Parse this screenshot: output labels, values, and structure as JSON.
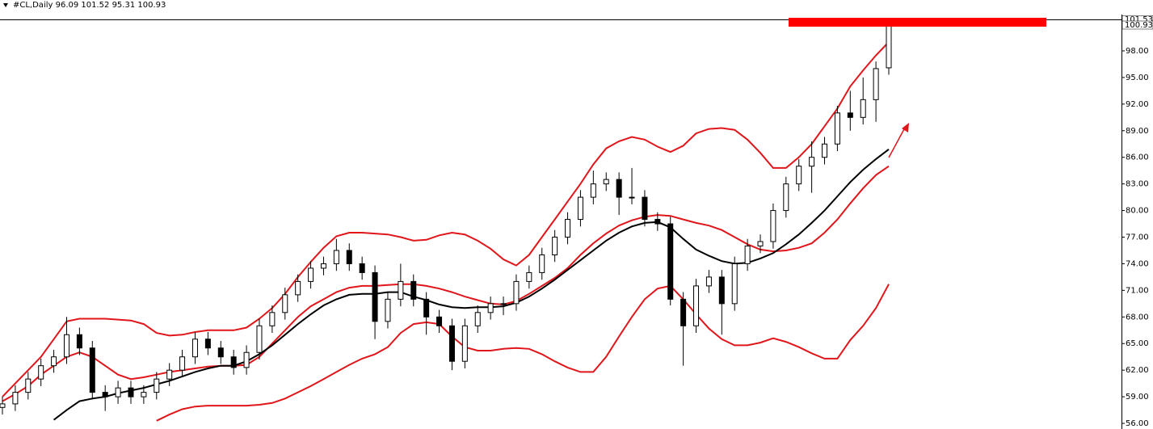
{
  "chart_data": {
    "type": "candlestick",
    "title": "#CL,Daily  96.09 101.52 95.31 100.93",
    "ylim": [
      55.64,
      101.55
    ],
    "yticks": [
      {
        "value": 56,
        "label": "56.00"
      },
      {
        "value": 59,
        "label": "59.00"
      },
      {
        "value": 62,
        "label": "62.00"
      },
      {
        "value": 65,
        "label": "65.00"
      },
      {
        "value": 68,
        "label": "68.00"
      },
      {
        "value": 71,
        "label": "71.00"
      },
      {
        "value": 74,
        "label": "74.00"
      },
      {
        "value": 77,
        "label": "77.00"
      },
      {
        "value": 80,
        "label": "80.00"
      },
      {
        "value": 83,
        "label": "83.00"
      },
      {
        "value": 86,
        "label": "86.00"
      },
      {
        "value": 89,
        "label": "89.00"
      },
      {
        "value": 92,
        "label": "92.00"
      },
      {
        "value": 95,
        "label": "95.00"
      },
      {
        "value": 98,
        "label": "98.00"
      }
    ],
    "price_labels": [
      101.53,
      100.93
    ],
    "up_color": "#ffffff",
    "down_color": "#000000",
    "candles": {
      "open": [
        57.8,
        58.2,
        59.5,
        61,
        62.5,
        63.5,
        66,
        64.5,
        59.5,
        59,
        60,
        59,
        59.5,
        61,
        62,
        63.5,
        65.5,
        64.5,
        63.5,
        62.3,
        64,
        67,
        68.5,
        70.5,
        72,
        73.5,
        74,
        75.5,
        74,
        73,
        67.5,
        70,
        72,
        70,
        68,
        67,
        63,
        67,
        68.5,
        69.5,
        69.5,
        72,
        73,
        75,
        77,
        79,
        81.5,
        83,
        83.5,
        81.5,
        81.5,
        79,
        78.5,
        70,
        67,
        71.5,
        72.5,
        69.5,
        74,
        76,
        76.5,
        80,
        83,
        85,
        86,
        87.5,
        91,
        90.5,
        92.5,
        96.09
      ],
      "high": [
        59,
        60.3,
        61.8,
        63.3,
        64.3,
        68,
        66.8,
        65.3,
        60.3,
        60.8,
        60.8,
        60.3,
        61.8,
        62.8,
        64.3,
        66.3,
        66.3,
        65.3,
        64.3,
        64.8,
        67.8,
        69.3,
        71.3,
        72.8,
        74.3,
        74.8,
        76.8,
        76.3,
        74.8,
        73.8,
        70.8,
        74,
        72.8,
        70.8,
        68.8,
        67.8,
        67.8,
        69.3,
        70.3,
        70.3,
        72.8,
        73.8,
        75.8,
        77.8,
        79.8,
        82.3,
        84.5,
        84.3,
        84.3,
        84.8,
        82.3,
        79.8,
        79.3,
        70.8,
        72.3,
        73.3,
        73.3,
        74.8,
        76.8,
        77.3,
        80.8,
        83.8,
        85.8,
        87.8,
        88.3,
        91.8,
        93.5,
        95,
        96.8,
        101.52
      ],
      "low": [
        57,
        57.4,
        58.7,
        60.2,
        61.7,
        62.7,
        63.7,
        58.7,
        57.4,
        58.2,
        58.2,
        58.2,
        58.7,
        60.2,
        61.2,
        62.7,
        63.7,
        62.7,
        61.5,
        61.5,
        63.2,
        66.2,
        67.7,
        69.7,
        71.2,
        72.7,
        73.2,
        73.2,
        72.2,
        65.5,
        66.7,
        69.2,
        69.2,
        66,
        66.2,
        62,
        62.2,
        66.2,
        67.7,
        68.2,
        68.7,
        71.2,
        72.2,
        74.2,
        76.2,
        78.2,
        80.7,
        82.2,
        79.5,
        80.7,
        78.2,
        77.7,
        69.3,
        62.5,
        66.2,
        70.7,
        66,
        68.7,
        73.2,
        75.2,
        75.7,
        79.2,
        82.2,
        82,
        85.2,
        86.7,
        89,
        89.7,
        90,
        95.31
      ],
      "close": [
        58.2,
        59.5,
        61,
        62.5,
        63.5,
        66,
        64.5,
        59.5,
        59,
        60,
        59,
        59.5,
        61,
        62,
        63.5,
        65.5,
        64.5,
        63.5,
        62.3,
        64,
        67,
        68.5,
        70.5,
        72,
        73.5,
        74,
        75.5,
        74,
        73,
        67.5,
        70,
        72,
        70,
        68,
        67,
        63,
        67,
        68.5,
        69.5,
        69.5,
        72,
        73,
        75,
        77,
        79,
        81.5,
        83,
        83.5,
        81.5,
        81.5,
        79,
        78.5,
        70,
        67,
        71.5,
        72.5,
        69.5,
        74,
        76,
        76.5,
        80,
        83,
        85,
        86,
        87.5,
        91,
        90.5,
        92.5,
        96,
        100.93
      ]
    },
    "lines": [
      {
        "color": "#e0161b",
        "values": [
          59,
          60.5,
          62,
          63.5,
          65.5,
          67.5,
          67.8,
          67.8,
          67.8,
          67.7,
          67.6,
          67.2,
          66.2,
          65.9,
          66,
          66.3,
          66.5,
          66.5,
          66.5,
          66.8,
          67.8,
          69,
          70.6,
          72.5,
          74.2,
          75.8,
          77.1,
          77.5,
          77.5,
          77.4,
          77.3,
          77,
          76.6,
          76.7,
          77.2,
          77.5,
          77.3,
          76.6,
          75.7,
          74.5,
          73.8,
          75,
          77,
          79,
          81,
          83,
          85.2,
          87,
          87.8,
          88.3,
          88,
          87.2,
          86.6,
          87.3,
          88.7,
          89.2,
          89.3,
          89.1,
          88,
          86.5,
          84.8,
          84.8,
          86,
          87.5,
          89.5,
          91.5,
          94,
          95.8,
          97.5,
          99
        ]
      },
      {
        "color": "#e0161b",
        "values": [
          58.5,
          59.3,
          60.2,
          61.5,
          62.5,
          63.5,
          64,
          63.5,
          62.5,
          61.5,
          61,
          61.2,
          61.5,
          61.8,
          62,
          62.2,
          62.4,
          62.5,
          62.5,
          62.6,
          63.5,
          65,
          66.5,
          68,
          69.2,
          70,
          70.8,
          71.3,
          71.5,
          71.5,
          71.6,
          71.7,
          71.7,
          71.5,
          71.2,
          70.8,
          70.3,
          69.9,
          69.5,
          69.4,
          69.8,
          70.6,
          71.5,
          72.4,
          73.5,
          75,
          76.3,
          77.4,
          78.3,
          78.9,
          79.3,
          79.5,
          79.4,
          79,
          78.6,
          78.3,
          77.8,
          77,
          76.2,
          75.6,
          75.4,
          75.5,
          75.8,
          76.3,
          77.5,
          79,
          80.8,
          82.5,
          84,
          85
        ]
      },
      {
        "color": "#e0161b",
        "values": [
          null,
          null,
          null,
          null,
          null,
          null,
          null,
          null,
          null,
          null,
          null,
          null,
          56.3,
          57,
          57.6,
          57.9,
          58,
          58,
          58,
          58,
          58.1,
          58.3,
          58.8,
          59.5,
          60.2,
          61,
          61.8,
          62.6,
          63.3,
          63.8,
          64.6,
          66.2,
          67.2,
          67.4,
          67.2,
          65.8,
          64.6,
          64.2,
          64.2,
          64.4,
          64.5,
          64.4,
          63.8,
          63,
          62.3,
          61.8,
          61.8,
          63.5,
          65.8,
          68,
          70,
          71.2,
          71.5,
          70,
          68.3,
          66.7,
          65.5,
          64.8,
          64.8,
          65.1,
          65.6,
          65.2,
          64.6,
          63.9,
          63.3,
          63.3,
          65.4,
          67,
          69,
          71.7
        ]
      },
      {
        "color": "#000000",
        "values": [
          null,
          null,
          null,
          null,
          56.4,
          57.5,
          58.5,
          58.8,
          59,
          59.4,
          59.7,
          60,
          60.4,
          60.8,
          61.3,
          61.8,
          62.2,
          62.5,
          62.5,
          63,
          63.8,
          64.8,
          66,
          67.2,
          68.3,
          69.3,
          70,
          70.5,
          70.6,
          70.6,
          70.8,
          70.8,
          70.3,
          69.9,
          69.4,
          69.1,
          69,
          69.1,
          69.1,
          69.2,
          69.6,
          70.3,
          71.2,
          72.2,
          73.3,
          74.4,
          75.5,
          76.6,
          77.5,
          78.2,
          78.6,
          78.7,
          78.1,
          76.8,
          75.6,
          74.9,
          74.3,
          74,
          74.1,
          74.6,
          75.2,
          76.2,
          77.3,
          78.6,
          80,
          81.6,
          83.2,
          84.6,
          85.8,
          86.9
        ]
      }
    ]
  }
}
